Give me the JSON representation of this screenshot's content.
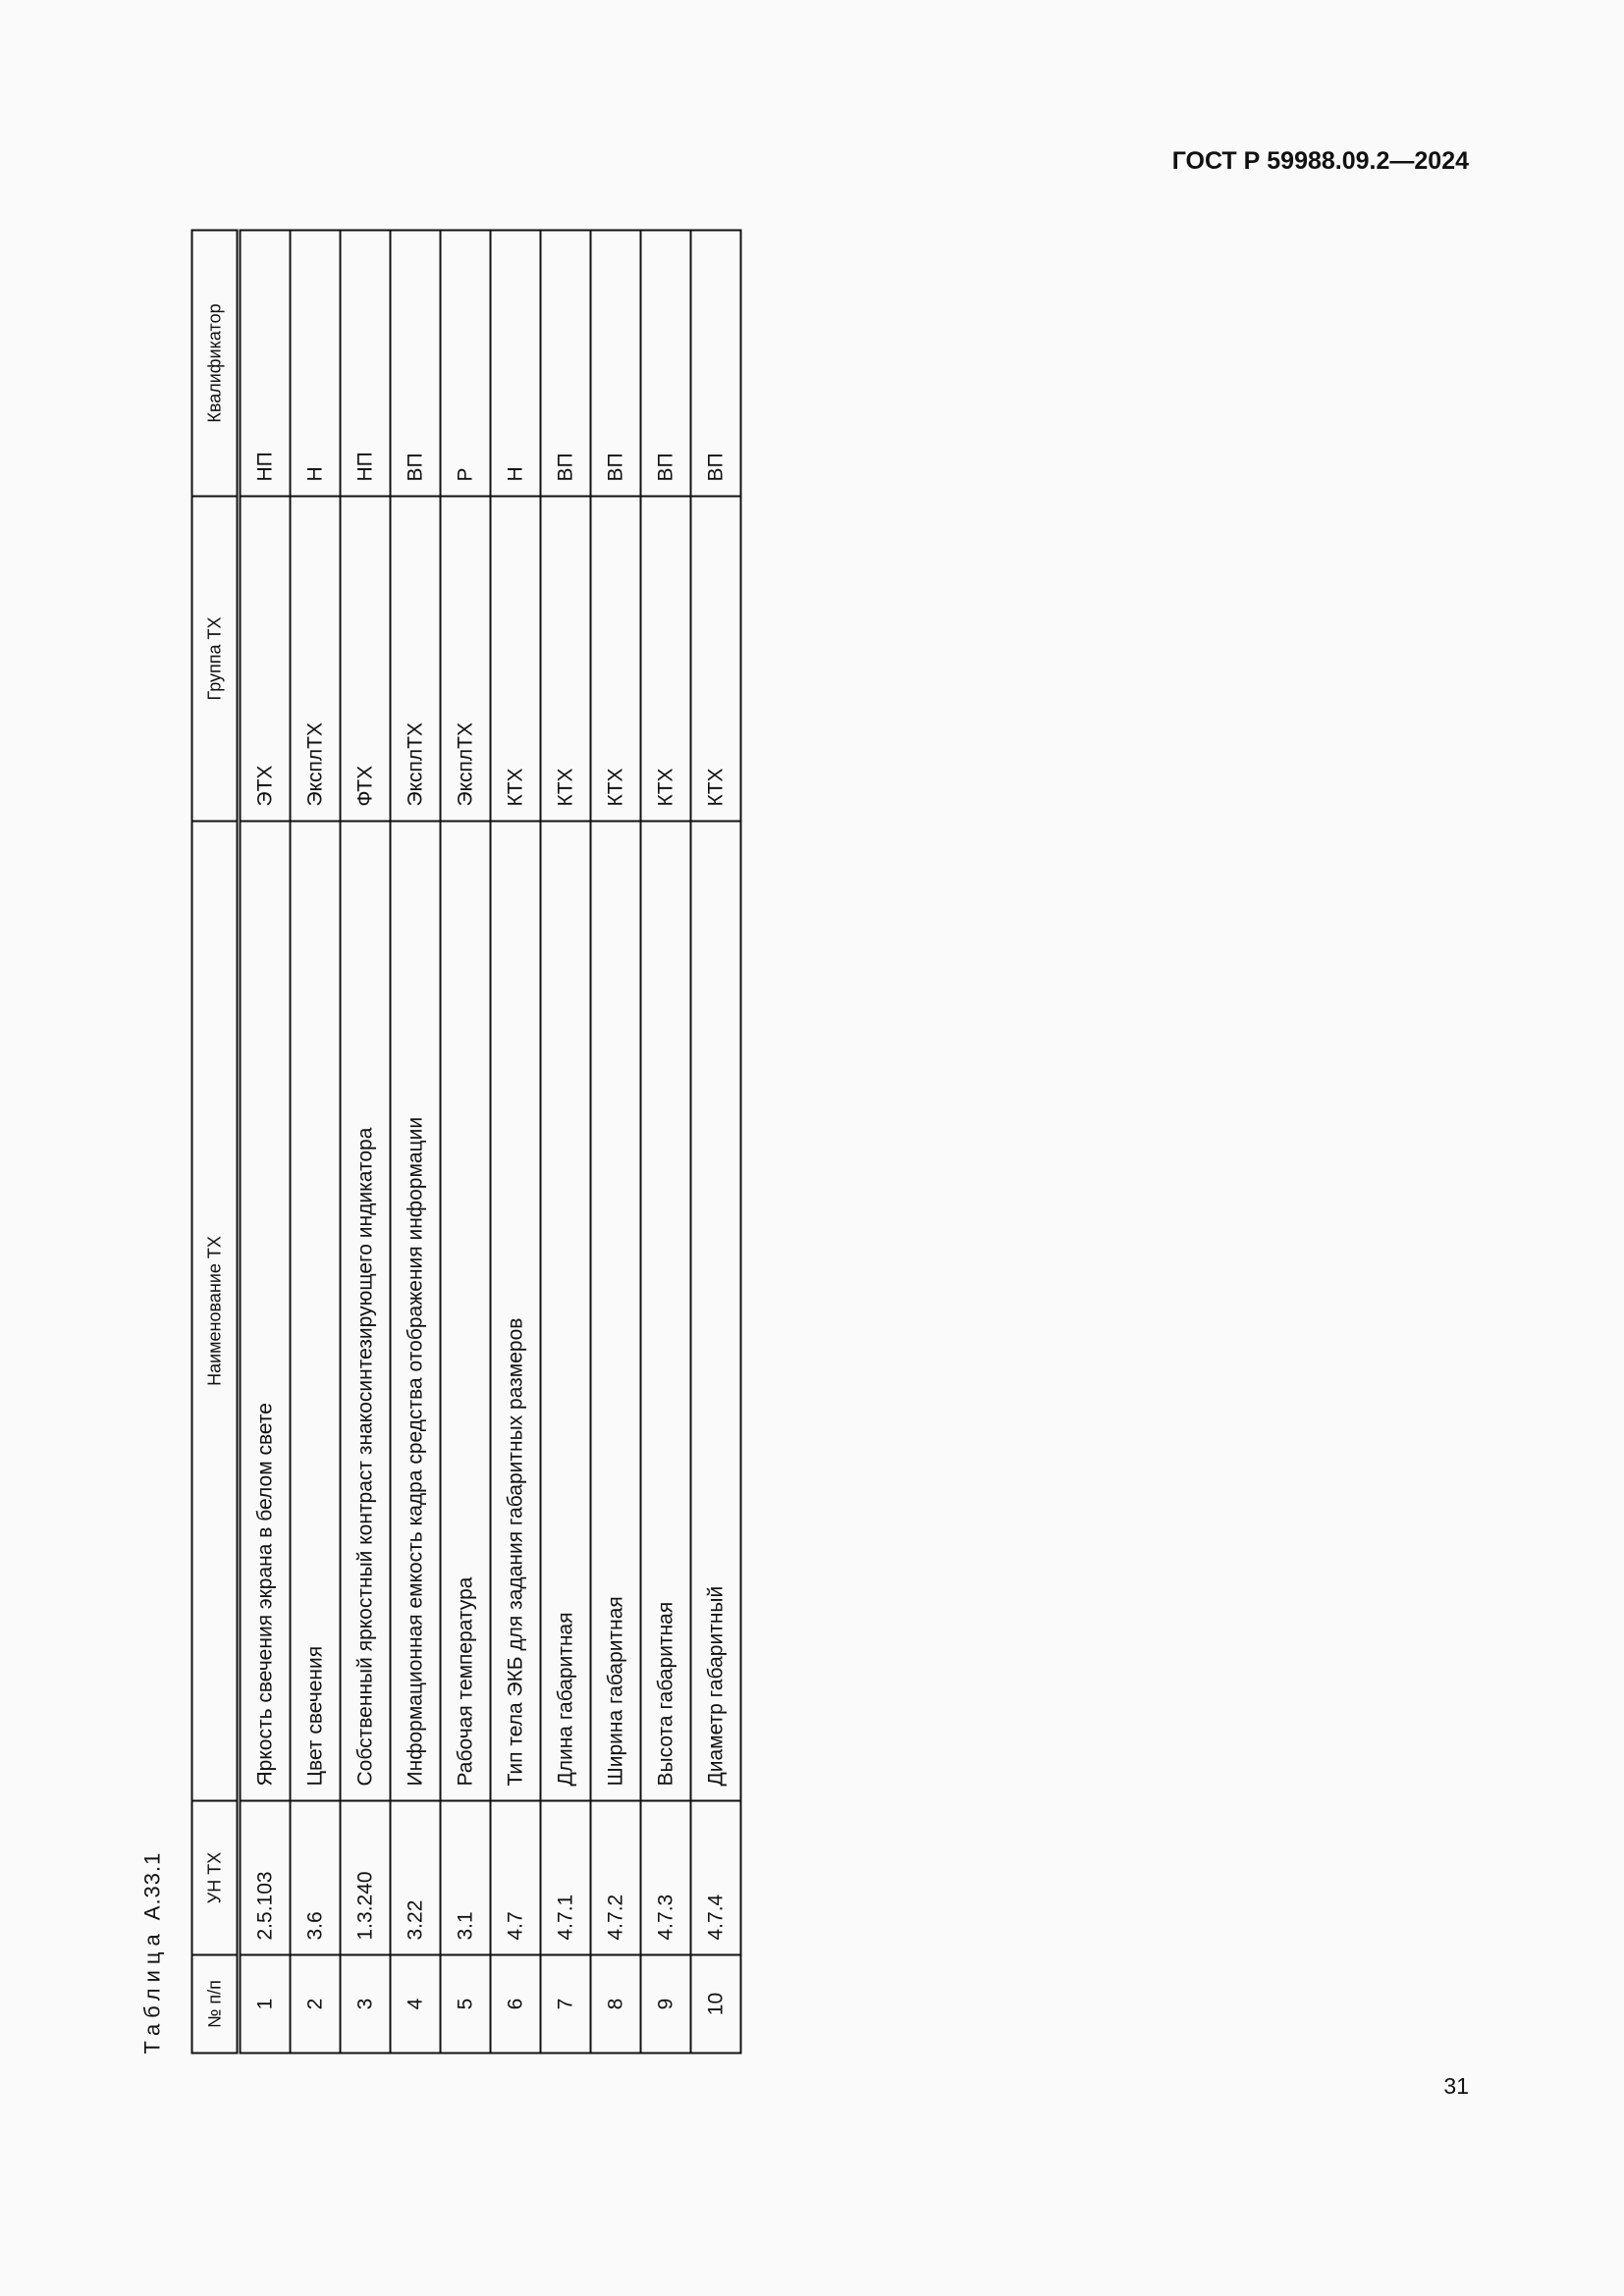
{
  "header": {
    "doc_code": "ГОСТ Р 59988.09.2—2024"
  },
  "caption": {
    "word": "Таблица",
    "number": "А.33.1"
  },
  "table": {
    "columns": [
      "№ п/п",
      "УН ТХ",
      "Наименование ТХ",
      "Группа ТХ",
      "Квалификатор"
    ],
    "rows": [
      [
        "1",
        "2.5.103",
        "Яркость свечения экрана в белом свете",
        "ЭТХ",
        "НП"
      ],
      [
        "2",
        "3.6",
        "Цвет свечения",
        "ЭксплТХ",
        "Н"
      ],
      [
        "3",
        "1.3.240",
        "Собственный яркостный контраст знакосинтезирующего индикатора",
        "ФТХ",
        "НП"
      ],
      [
        "4",
        "3.22",
        "Информационная емкость кадра средства отображения информации",
        "ЭксплТХ",
        "ВП"
      ],
      [
        "5",
        "3.1",
        "Рабочая температура",
        "ЭксплТХ",
        "Р"
      ],
      [
        "6",
        "4.7",
        "Тип тела ЭКБ для задания габаритных размеров",
        "КТХ",
        "Н"
      ],
      [
        "7",
        "4.7.1",
        "Длина габаритная",
        "КТХ",
        "ВП"
      ],
      [
        "8",
        "4.7.2",
        "Ширина габаритная",
        "КТХ",
        "ВП"
      ],
      [
        "9",
        "4.7.3",
        "Высота габаритная",
        "КТХ",
        "ВП"
      ],
      [
        "10",
        "4.7.4",
        "Диаметр габаритный",
        "КТХ",
        "ВП"
      ]
    ]
  },
  "footer": {
    "page_number": "31"
  }
}
